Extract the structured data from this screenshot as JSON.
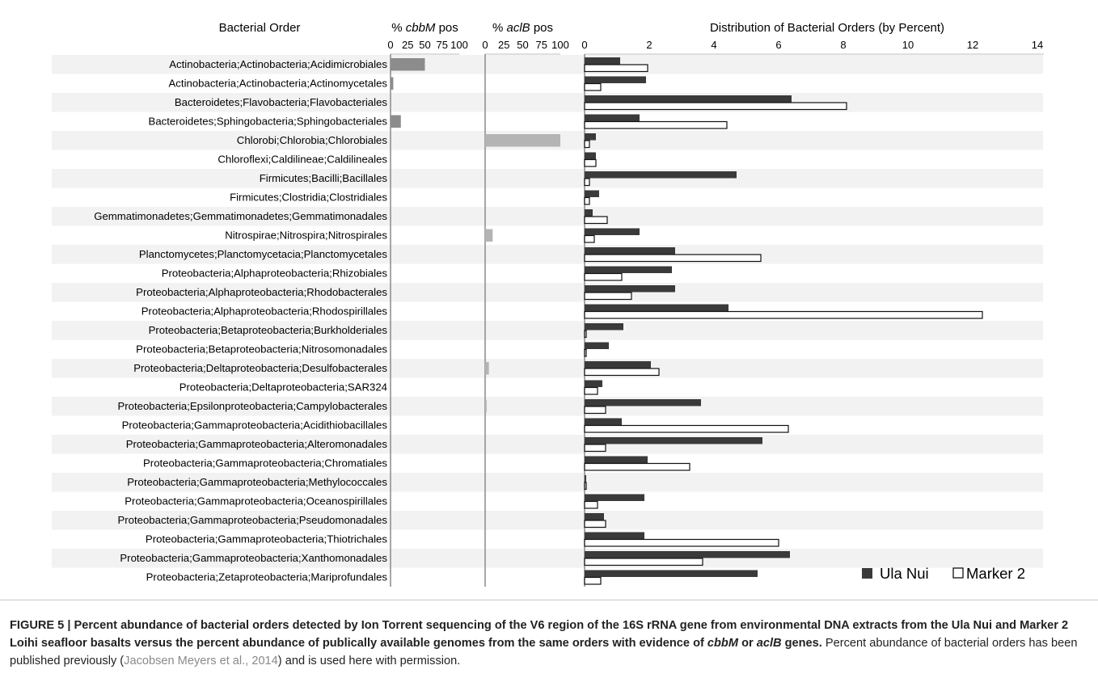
{
  "chart_data": [
    {
      "type": "bar",
      "orientation": "horizontal",
      "title_prefix": "% ",
      "title_italic": "cbbM",
      "title_suffix": " pos",
      "xlim": [
        0,
        100
      ],
      "xticks": [
        0,
        25,
        50,
        75,
        100
      ],
      "series": [
        {
          "name": "% cbbM pos",
          "color": "#8c8c8c",
          "values": [
            50,
            4,
            0,
            15,
            0,
            0,
            0,
            0,
            0,
            0,
            0,
            0,
            0,
            0,
            0,
            0,
            0,
            0,
            0,
            0,
            0,
            0,
            0,
            0,
            0,
            0,
            0,
            0
          ]
        }
      ]
    },
    {
      "type": "bar",
      "orientation": "horizontal",
      "title_prefix": "% ",
      "title_italic": "aclB",
      "title_suffix": " pos",
      "xlim": [
        0,
        100
      ],
      "xticks": [
        0,
        25,
        50,
        75,
        100
      ],
      "series": [
        {
          "name": "% aclB pos",
          "color": "#b4b4b4",
          "values": [
            0,
            0,
            0,
            0,
            100,
            0,
            0,
            0,
            0,
            10,
            0,
            0,
            0,
            0,
            0,
            0,
            5,
            0,
            2,
            0,
            0,
            0,
            0,
            0,
            0,
            0,
            0,
            0
          ]
        }
      ]
    },
    {
      "type": "bar",
      "orientation": "horizontal",
      "title": "Distribution of Bacterial Orders (by Percent)",
      "xlim": [
        0,
        14
      ],
      "xticks": [
        0,
        2,
        4,
        6,
        8,
        10,
        12,
        14
      ],
      "legend_position": "bottom-right",
      "series": [
        {
          "name": "Ula Nui",
          "color": "#3a3a3a",
          "values": [
            1.1,
            1.9,
            6.4,
            1.7,
            0.35,
            0.35,
            4.7,
            0.45,
            0.25,
            1.7,
            2.8,
            2.7,
            2.8,
            4.45,
            1.2,
            0.75,
            2.05,
            0.55,
            3.6,
            1.15,
            5.5,
            1.95,
            0.05,
            1.85,
            0.6,
            1.85,
            6.35,
            5.35
          ]
        },
        {
          "name": "Marker 2",
          "color": "#ffffff",
          "values": [
            1.95,
            0.5,
            8.1,
            4.4,
            0.15,
            0.35,
            0.15,
            0.15,
            0.7,
            0.3,
            5.45,
            1.15,
            1.45,
            12.3,
            0.05,
            0.05,
            2.3,
            0.4,
            0.65,
            6.3,
            0.65,
            3.25,
            0.05,
            0.4,
            0.65,
            6.0,
            3.65,
            0.5
          ]
        }
      ]
    }
  ],
  "category_header": "Bacterial Order",
  "categories": [
    "Actinobacteria;Actinobacteria;Acidimicrobiales",
    "Actinobacteria;Actinobacteria;Actinomycetales",
    "Bacteroidetes;Flavobacteria;Flavobacteriales",
    "Bacteroidetes;Sphingobacteria;Sphingobacteriales",
    "Chlorobi;Chlorobia;Chlorobiales",
    "Chloroflexi;Caldilineae;Caldilineales",
    "Firmicutes;Bacilli;Bacillales",
    "Firmicutes;Clostridia;Clostridiales",
    "Gemmatimonadetes;Gemmatimonadetes;Gemmatimonadales",
    "Nitrospirae;Nitrospira;Nitrospirales",
    "Planctomycetes;Planctomycetacia;Planctomycetales",
    "Proteobacteria;Alphaproteobacteria;Rhizobiales",
    "Proteobacteria;Alphaproteobacteria;Rhodobacterales",
    "Proteobacteria;Alphaproteobacteria;Rhodospirillales",
    "Proteobacteria;Betaproteobacteria;Burkholderiales",
    "Proteobacteria;Betaproteobacteria;Nitrosomonadales",
    "Proteobacteria;Deltaproteobacteria;Desulfobacterales",
    "Proteobacteria;Deltaproteobacteria;SAR324",
    "Proteobacteria;Epsilonproteobacteria;Campylobacterales",
    "Proteobacteria;Gammaproteobacteria;Acidithiobacillales",
    "Proteobacteria;Gammaproteobacteria;Alteromonadales",
    "Proteobacteria;Gammaproteobacteria;Chromatiales",
    "Proteobacteria;Gammaproteobacteria;Methylococcales",
    "Proteobacteria;Gammaproteobacteria;Oceanospirillales",
    "Proteobacteria;Gammaproteobacteria;Pseudomonadales",
    "Proteobacteria;Gammaproteobacteria;Thiotrichales",
    "Proteobacteria;Gammaproteobacteria;Xanthomonadales",
    "Proteobacteria;Zetaproteobacteria;Mariprofundales"
  ],
  "caption": {
    "label": "FIGURE 5 | ",
    "bold_1": "Percent abundance of bacterial orders detected by Ion Torrent sequencing of the V6 region of the 16S rRNA gene from environmental DNA extracts from the Ula Nui and Marker 2 Loihi seafloor basalts versus the percent abundance of publically available genomes from the same orders with evidence of ",
    "bold_italic_1": "cbbM",
    "bold_2": " or ",
    "bold_italic_2": "aclB",
    "bold_3": " genes.",
    "normal_1": " Percent abundance of bacterial orders has been published previously (",
    "citation": "Jacobsen Meyers et al., 2014",
    "normal_2": ") and is used here with permission."
  }
}
